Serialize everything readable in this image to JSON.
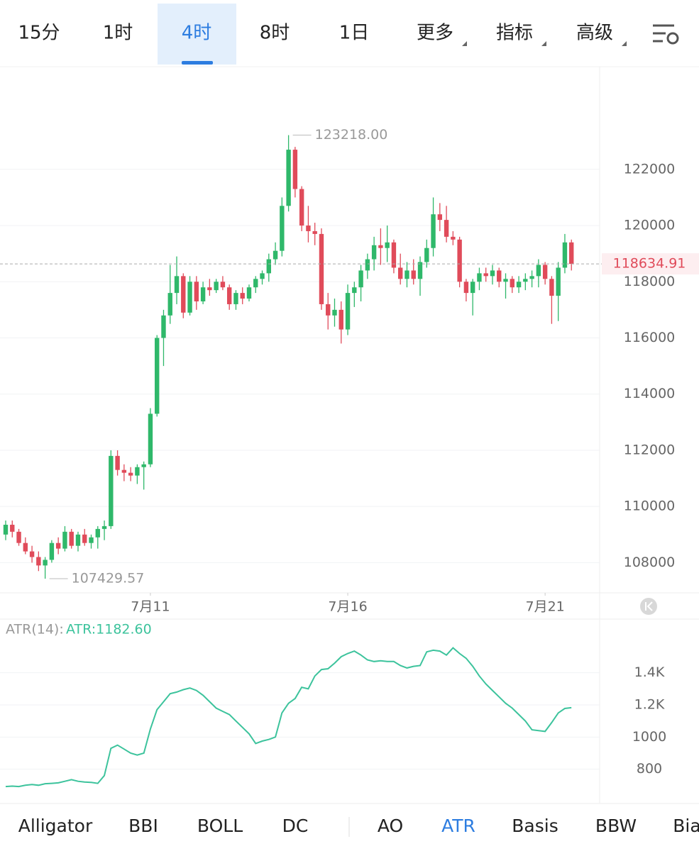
{
  "toolbar": {
    "tabs": [
      "15分",
      "1时",
      "4时",
      "8时",
      "1日"
    ],
    "active": 2,
    "menus": [
      "更多",
      "指标",
      "高级"
    ]
  },
  "chart_data": [
    {
      "type": "candlestick",
      "up_color": "#2fb86a",
      "down_color": "#e04b5a",
      "candles": [
        [
          109000,
          109500,
          108800,
          109350
        ],
        [
          109350,
          109500,
          108900,
          109100
        ],
        [
          109100,
          109200,
          108600,
          108700
        ],
        [
          108700,
          108900,
          108300,
          108400
        ],
        [
          108400,
          108600,
          108000,
          108200
        ],
        [
          108200,
          108400,
          107700,
          107900
        ],
        [
          107900,
          108200,
          107429.57,
          108100
        ],
        [
          108100,
          108800,
          108000,
          108700
        ],
        [
          108700,
          108900,
          108300,
          108500
        ],
        [
          108500,
          109300,
          108400,
          109100
        ],
        [
          109100,
          109200,
          108500,
          108600
        ],
        [
          108600,
          109100,
          108400,
          109000
        ],
        [
          109000,
          109200,
          108600,
          108700
        ],
        [
          108700,
          109000,
          108500,
          108900
        ],
        [
          108900,
          109300,
          108500,
          109200
        ],
        [
          109200,
          109500,
          108800,
          109300
        ],
        [
          109300,
          112000,
          109200,
          111800
        ],
        [
          111800,
          112000,
          111100,
          111300
        ],
        [
          111300,
          111500,
          110900,
          111200
        ],
        [
          111200,
          111400,
          110900,
          111100
        ],
        [
          111100,
          111500,
          110800,
          111400
        ],
        [
          111400,
          111600,
          110600,
          111500
        ],
        [
          111500,
          113500,
          111400,
          113300
        ],
        [
          113300,
          116100,
          113200,
          116000
        ],
        [
          116000,
          117000,
          115000,
          116800
        ],
        [
          116800,
          118600,
          116500,
          117600
        ],
        [
          117600,
          118900,
          117200,
          118200
        ],
        [
          118200,
          118300,
          116700,
          116900
        ],
        [
          116900,
          118200,
          116800,
          118000
        ],
        [
          118000,
          118200,
          117000,
          117300
        ],
        [
          117300,
          118000,
          117200,
          117800
        ],
        [
          117800,
          118100,
          117500,
          117700
        ],
        [
          117700,
          118100,
          117600,
          118000
        ],
        [
          118000,
          118200,
          117700,
          117800
        ],
        [
          117800,
          117900,
          117000,
          117200
        ],
        [
          117200,
          117700,
          117000,
          117600
        ],
        [
          117600,
          117800,
          117200,
          117400
        ],
        [
          117400,
          117900,
          117300,
          117800
        ],
        [
          117800,
          118200,
          117600,
          118100
        ],
        [
          118100,
          118400,
          117900,
          118300
        ],
        [
          118300,
          119000,
          118000,
          118800
        ],
        [
          118800,
          119400,
          118600,
          119100
        ],
        [
          119100,
          121000,
          118900,
          120700
        ],
        [
          120700,
          123218,
          120500,
          122700
        ],
        [
          122700,
          122800,
          121000,
          121300
        ],
        [
          121300,
          121400,
          119800,
          120000
        ],
        [
          120000,
          120700,
          119400,
          119800
        ],
        [
          119800,
          120100,
          119300,
          119700
        ],
        [
          119700,
          119900,
          117000,
          117200
        ],
        [
          117200,
          117600,
          116300,
          116800
        ],
        [
          116800,
          117400,
          116400,
          117000
        ],
        [
          117000,
          117300,
          115800,
          116300
        ],
        [
          116300,
          117900,
          116100,
          117600
        ],
        [
          117600,
          118000,
          117100,
          117800
        ],
        [
          117800,
          118600,
          117300,
          118400
        ],
        [
          118400,
          119000,
          118100,
          118800
        ],
        [
          118800,
          119600,
          118400,
          119300
        ],
        [
          119300,
          119900,
          118600,
          119200
        ],
        [
          119200,
          120000,
          118700,
          119400
        ],
        [
          119400,
          119500,
          118300,
          118500
        ],
        [
          118500,
          119000,
          117900,
          118100
        ],
        [
          118100,
          118700,
          117800,
          118400
        ],
        [
          118400,
          118800,
          117900,
          118100
        ],
        [
          118100,
          118900,
          117500,
          118700
        ],
        [
          118700,
          119500,
          118500,
          119200
        ],
        [
          119200,
          121000,
          118900,
          120400
        ],
        [
          120400,
          120800,
          119800,
          120200
        ],
        [
          120200,
          120700,
          119400,
          119600
        ],
        [
          119600,
          119800,
          119300,
          119500
        ],
        [
          119500,
          119600,
          117800,
          118000
        ],
        [
          118000,
          118100,
          117300,
          117600
        ],
        [
          117600,
          118100,
          116800,
          118000
        ],
        [
          118000,
          118500,
          117700,
          118300
        ],
        [
          118300,
          118500,
          118000,
          118200
        ],
        [
          118200,
          118600,
          117900,
          118400
        ],
        [
          118400,
          118500,
          117800,
          118000
        ],
        [
          118000,
          118300,
          117400,
          118100
        ],
        [
          118100,
          118200,
          117600,
          117800
        ],
        [
          117800,
          118200,
          117600,
          118000
        ],
        [
          118000,
          118300,
          117700,
          118100
        ],
        [
          118100,
          118400,
          117800,
          118200
        ],
        [
          118200,
          118800,
          117800,
          118600
        ],
        [
          118600,
          118700,
          117900,
          118100
        ],
        [
          118100,
          118200,
          116500,
          117500
        ],
        [
          117500,
          118700,
          116600,
          118500
        ],
        [
          118500,
          119700,
          118300,
          119400
        ],
        [
          119400,
          119500,
          118400,
          118634.91
        ]
      ],
      "ylim": [
        106950,
        125630
      ],
      "yticks": [
        108000,
        110000,
        112000,
        114000,
        116000,
        118000,
        120000,
        122000
      ],
      "xticks": [
        {
          "value": 22,
          "label": "7月11"
        },
        {
          "value": 52,
          "label": "7月16"
        },
        {
          "value": 82,
          "label": "7月21"
        }
      ],
      "max_label": {
        "value": 123218,
        "label": "123218.00"
      },
      "min_label": {
        "value": 107429.57,
        "label": "107429.57"
      },
      "last_price": 118634.91,
      "grid": true
    },
    {
      "type": "line",
      "title": "ATR(14):",
      "legend_label": "ATR:1182.60",
      "series": [
        {
          "name": "ATR",
          "color": "#3cc39c",
          "values": [
            692,
            695,
            692,
            700,
            705,
            700,
            710,
            712,
            715,
            725,
            735,
            725,
            720,
            718,
            712,
            760,
            930,
            950,
            925,
            900,
            888,
            900,
            1050,
            1170,
            1220,
            1270,
            1280,
            1295,
            1305,
            1290,
            1260,
            1220,
            1180,
            1160,
            1140,
            1100,
            1060,
            1020,
            960,
            975,
            985,
            1000,
            1150,
            1210,
            1240,
            1310,
            1300,
            1380,
            1420,
            1425,
            1460,
            1500,
            1520,
            1535,
            1510,
            1480,
            1470,
            1475,
            1470,
            1470,
            1445,
            1430,
            1440,
            1445,
            1530,
            1540,
            1535,
            1510,
            1555,
            1520,
            1490,
            1440,
            1380,
            1330,
            1290,
            1250,
            1210,
            1180,
            1140,
            1100,
            1045,
            1040,
            1035,
            1090,
            1150,
            1178,
            1182.6
          ]
        }
      ],
      "ylim": [
        600,
        1725
      ],
      "yticks": [
        {
          "value": 1400,
          "label": "1.4K"
        },
        {
          "value": 1200,
          "label": "1.2K"
        },
        1000,
        800
      ],
      "grid": true
    }
  ],
  "indicator_tabs": {
    "items": [
      "Alligator",
      "BBI",
      "BOLL",
      "DC",
      "AO",
      "ATR",
      "Basis",
      "BBW",
      "Bia"
    ],
    "active": 5
  }
}
